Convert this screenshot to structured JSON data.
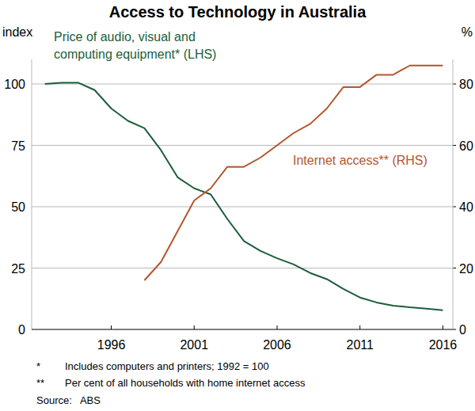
{
  "chart_data": {
    "type": "line",
    "title": "Access to Technology in Australia",
    "y_label": "index",
    "y2_label": "%",
    "x": [
      1992,
      1993,
      1994,
      1995,
      1996,
      1997,
      1998,
      1999,
      2000,
      2001,
      2002,
      2003,
      2004,
      2005,
      2006,
      2007,
      2008,
      2009,
      2010,
      2011,
      2012,
      2013,
      2014,
      2015,
      2016
    ],
    "series": [
      {
        "name": "Price of audio, visual and computing equipment* (LHS)",
        "color": "#1b5e3b",
        "axis": "y",
        "values": [
          100,
          100.5,
          100.5,
          97.5,
          90,
          85,
          82,
          73,
          62,
          57.5,
          55,
          45,
          36,
          32,
          29,
          26.5,
          23,
          20.5,
          16.5,
          13,
          11,
          9.7,
          9,
          8.5,
          7.8
        ]
      },
      {
        "name": "Internet access** (RHS)",
        "color": "#b4562c",
        "axis": "y2",
        "values": [
          null,
          null,
          null,
          null,
          null,
          null,
          16,
          22,
          32,
          42,
          46,
          53,
          53,
          56,
          60,
          64,
          67,
          72,
          79,
          79,
          83,
          83,
          86,
          86,
          86
        ]
      }
    ],
    "xlim": [
      1991.2,
      2016.6
    ],
    "xticks": [
      1996,
      2001,
      2006,
      2011,
      2016
    ],
    "ylim": [
      0,
      110
    ],
    "yticks": [
      0,
      25,
      50,
      75,
      100
    ],
    "y2lim": [
      0,
      88
    ],
    "y2ticks": [
      0,
      20,
      40,
      60,
      80
    ],
    "grid": true,
    "footnotes": [
      {
        "mark": "*",
        "text": "Includes computers and printers; 1992 = 100"
      },
      {
        "mark": "**",
        "text": "Per cent of all households with home internet access"
      }
    ],
    "source": "Source:   ABS"
  }
}
